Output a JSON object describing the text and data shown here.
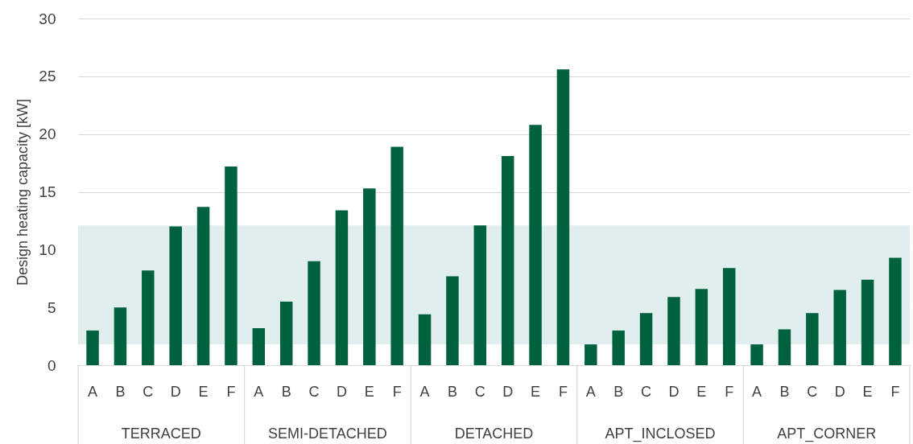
{
  "chart_data": {
    "type": "bar",
    "ylabel": "Design heating capacity [kW]",
    "categories": [
      "A",
      "B",
      "C",
      "D",
      "E",
      "F",
      "A",
      "B",
      "C",
      "D",
      "E",
      "F",
      "A",
      "B",
      "C",
      "D",
      "E",
      "F",
      "A",
      "B",
      "C",
      "D",
      "E",
      "F",
      "A",
      "B",
      "C",
      "D",
      "E",
      "F"
    ],
    "values": [
      3.0,
      5.0,
      8.2,
      12.0,
      13.7,
      17.2,
      3.2,
      5.5,
      9.0,
      13.4,
      15.3,
      18.9,
      4.4,
      7.7,
      12.1,
      18.1,
      20.8,
      25.6,
      1.8,
      3.0,
      4.5,
      5.9,
      6.6,
      8.4,
      1.8,
      3.1,
      4.5,
      6.5,
      7.4,
      9.3
    ],
    "color": "#00613f",
    "ylim": [
      0,
      30
    ],
    "yticks": [
      0,
      5,
      10,
      15,
      20,
      25,
      30
    ],
    "grid": "y",
    "bands": [
      {
        "axis": "y",
        "from": 1.8,
        "to": 12.1,
        "color": "#e0eeed"
      }
    ],
    "annotations": [
      "TERRACED",
      "SEMI-DETACHED",
      "DETACHED",
      "APT_INCLOSED",
      "APT_CORNER"
    ]
  }
}
